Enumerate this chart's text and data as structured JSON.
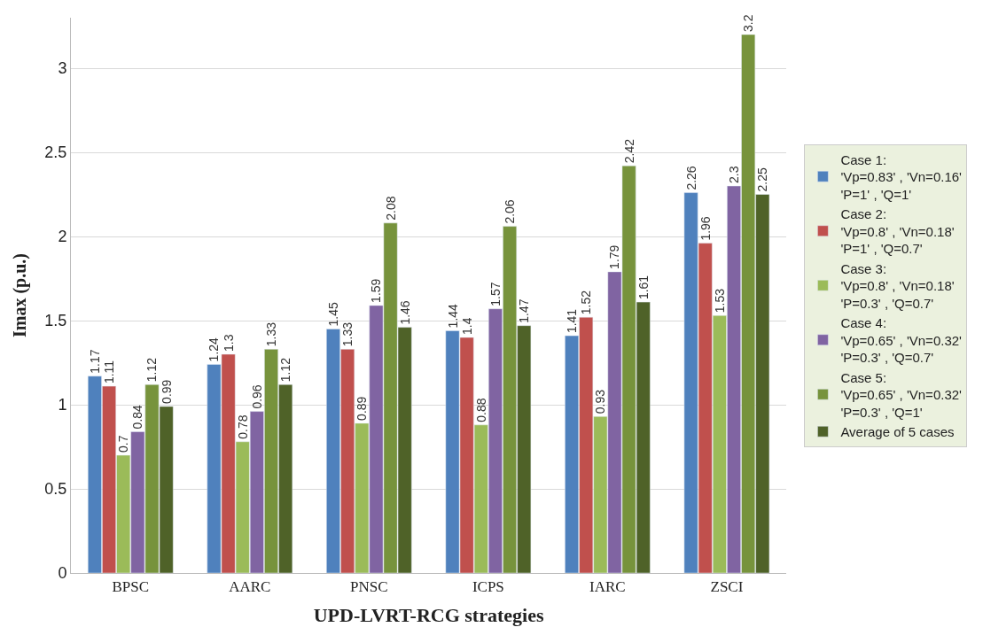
{
  "chart_data": {
    "type": "bar",
    "xlabel": "UPD-LVRT-RCG strategies",
    "ylabel": "Imax (p.u.)",
    "categories": [
      "BPSC",
      "AARC",
      "PNSC",
      "ICPS",
      "IARC",
      "ZSCI"
    ],
    "series": [
      {
        "name": "Case 1:\n'Vp=0.83' , 'Vn=0.16'\n'P=1' , 'Q=1'",
        "color": "#4f81bd",
        "values": [
          1.17,
          1.24,
          1.45,
          1.44,
          1.41,
          2.26
        ]
      },
      {
        "name": "Case 2:\n'Vp=0.8' , 'Vn=0.18'\n'P=1' , 'Q=0.7'",
        "color": "#c0504d",
        "values": [
          1.11,
          1.3,
          1.33,
          1.4,
          1.52,
          1.96
        ]
      },
      {
        "name": "Case 3:\n'Vp=0.8' , 'Vn=0.18'\n'P=0.3' , 'Q=0.7'",
        "color": "#9bbb59",
        "values": [
          0.7,
          0.78,
          0.89,
          0.88,
          0.93,
          1.53
        ]
      },
      {
        "name": "Case 4:\n'Vp=0.65' , 'Vn=0.32'\n'P=0.3' , 'Q=0.7'",
        "color": "#8064a2",
        "values": [
          0.84,
          0.96,
          1.59,
          1.57,
          1.79,
          2.3
        ]
      },
      {
        "name": "Case 5:\n'Vp=0.65' , 'Vn=0.32'\n'P=0.3' , 'Q=1'",
        "color": "#77933c",
        "values": [
          1.12,
          1.33,
          2.08,
          2.06,
          2.42,
          3.2
        ]
      },
      {
        "name": "Average of 5 cases",
        "color": "#4f6228",
        "values": [
          0.99,
          1.12,
          1.46,
          1.47,
          1.61,
          2.25
        ]
      }
    ],
    "ylim": [
      0,
      3.3
    ],
    "yticks": [
      0,
      0.5,
      1,
      1.5,
      2,
      2.5,
      3
    ],
    "grid": "y",
    "legend": "right",
    "data_labels": true
  }
}
